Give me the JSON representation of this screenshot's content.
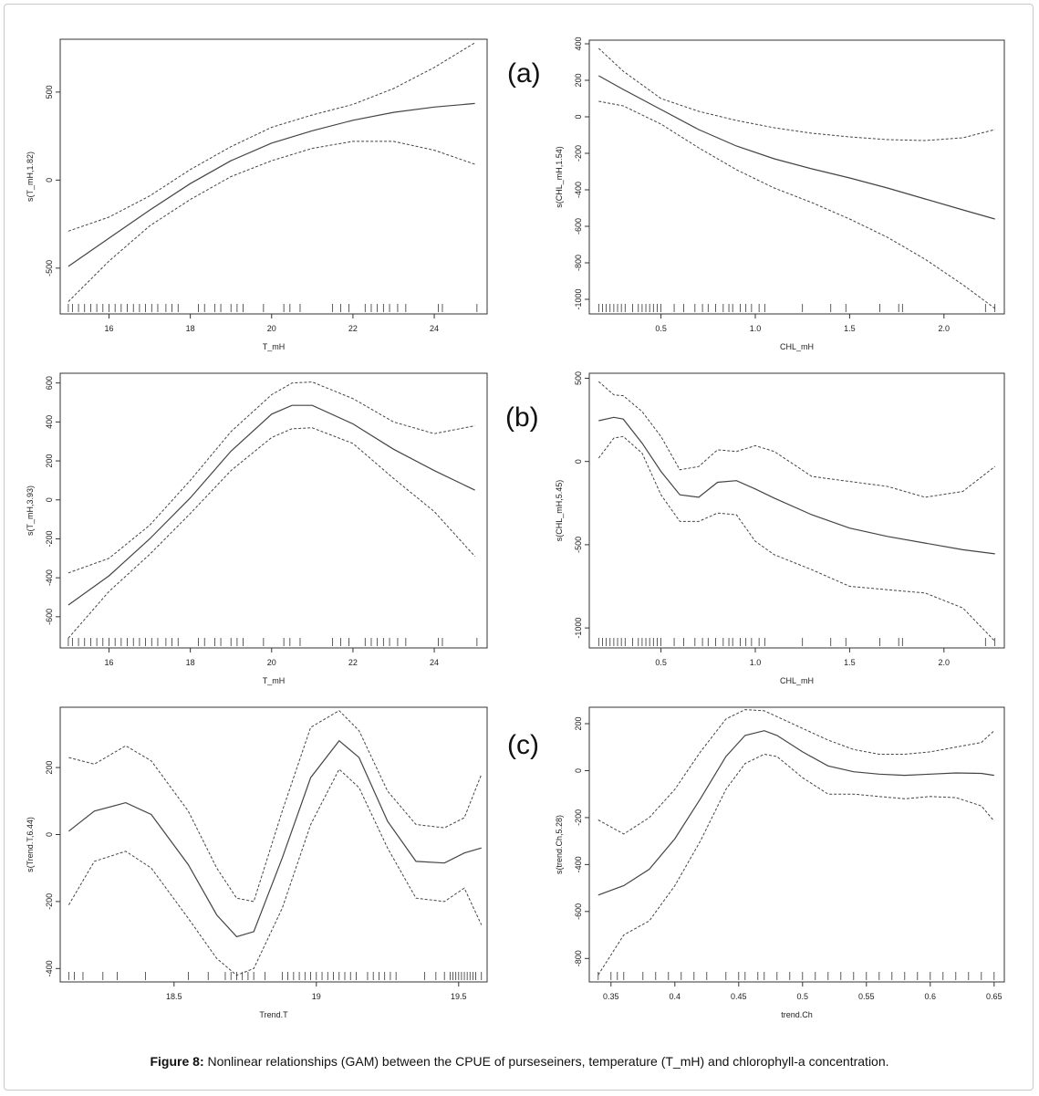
{
  "caption": {
    "label": "Figure 8:",
    "text": " Nonlinear relationships (GAM) between the CPUE of purseseiners, temperature (T_mH) and chlorophyll-a concentration."
  },
  "panel_labels": [
    "(a)",
    "(b)",
    "(c)"
  ],
  "colors": {
    "line": "#444444",
    "axis": "#333333"
  },
  "chart_data": [
    {
      "type": "line",
      "panel": "a-left",
      "xlabel": "T_mH",
      "ylabel": "s(T_mH,1.82)",
      "xlim": [
        14.8,
        25.3
      ],
      "ylim": [
        -760,
        800
      ],
      "xticks": [
        16,
        18,
        20,
        22,
        24
      ],
      "yticks": [
        -500,
        0,
        500
      ],
      "x": [
        15,
        16,
        17,
        18,
        19,
        20,
        21,
        22,
        23,
        24,
        25
      ],
      "fit": [
        -490,
        -330,
        -170,
        -20,
        110,
        210,
        280,
        340,
        385,
        415,
        435
      ],
      "upper": [
        -290,
        -210,
        -90,
        60,
        190,
        300,
        370,
        430,
        520,
        640,
        780
      ],
      "lower": [
        -690,
        -460,
        -260,
        -110,
        20,
        110,
        180,
        220,
        220,
        170,
        90
      ],
      "rug": [
        15.0,
        15.1,
        15.25,
        15.4,
        15.55,
        15.7,
        15.85,
        16.0,
        16.15,
        16.3,
        16.45,
        16.6,
        16.75,
        16.9,
        17.05,
        17.2,
        17.4,
        17.55,
        17.7,
        18.2,
        18.35,
        18.6,
        18.75,
        19.0,
        19.15,
        19.3,
        19.8,
        20.3,
        20.45,
        20.7,
        21.5,
        21.7,
        21.9,
        22.3,
        22.45,
        22.6,
        22.75,
        22.9,
        23.1,
        23.3,
        24.1,
        24.2,
        25.05
      ]
    },
    {
      "type": "line",
      "panel": "a-right",
      "xlabel": "CHL_mH",
      "ylabel": "s(CHL_mH,1.54)",
      "xlim": [
        0.12,
        2.32
      ],
      "ylim": [
        -1080,
        420
      ],
      "xticks": [
        0.5,
        1.0,
        1.5,
        2.0
      ],
      "yticks": [
        -1000,
        -800,
        -600,
        -400,
        -200,
        0,
        200,
        400
      ],
      "x": [
        0.17,
        0.3,
        0.5,
        0.7,
        0.9,
        1.1,
        1.3,
        1.5,
        1.7,
        1.9,
        2.1,
        2.27
      ],
      "fit": [
        225,
        150,
        40,
        -70,
        -160,
        -230,
        -285,
        -335,
        -390,
        -450,
        -510,
        -560
      ],
      "upper": [
        375,
        250,
        100,
        30,
        -20,
        -60,
        -90,
        -110,
        -125,
        -130,
        -115,
        -70
      ],
      "lower": [
        85,
        60,
        -40,
        -170,
        -290,
        -390,
        -470,
        -560,
        -660,
        -780,
        -920,
        -1050
      ],
      "rug": [
        0.17,
        0.19,
        0.21,
        0.23,
        0.25,
        0.27,
        0.29,
        0.31,
        0.35,
        0.38,
        0.4,
        0.42,
        0.44,
        0.46,
        0.48,
        0.5,
        0.57,
        0.62,
        0.68,
        0.72,
        0.75,
        0.79,
        0.83,
        0.86,
        0.88,
        0.92,
        0.95,
        0.98,
        1.02,
        1.05,
        1.25,
        1.4,
        1.48,
        1.66,
        1.76,
        1.78,
        2.22,
        2.27
      ]
    },
    {
      "type": "line",
      "panel": "b-left",
      "xlabel": "T_mH",
      "ylabel": "s(T_mH,3.93)",
      "xlim": [
        14.8,
        25.3
      ],
      "ylim": [
        -760,
        650
      ],
      "xticks": [
        16,
        18,
        20,
        22,
        24
      ],
      "yticks": [
        -600,
        -400,
        -200,
        0,
        200,
        400,
        600
      ],
      "x": [
        15,
        16,
        17,
        18,
        19,
        20,
        20.5,
        21,
        22,
        23,
        24,
        25
      ],
      "fit": [
        -540,
        -390,
        -200,
        10,
        250,
        440,
        485,
        485,
        390,
        260,
        150,
        50
      ],
      "upper": [
        -375,
        -300,
        -130,
        100,
        350,
        540,
        600,
        605,
        520,
        400,
        340,
        380
      ],
      "lower": [
        -710,
        -470,
        -280,
        -70,
        150,
        320,
        365,
        370,
        290,
        110,
        -60,
        -290
      ],
      "rug": [
        15.0,
        15.1,
        15.25,
        15.4,
        15.55,
        15.7,
        15.85,
        16.0,
        16.15,
        16.3,
        16.45,
        16.6,
        16.75,
        16.9,
        17.05,
        17.2,
        17.4,
        17.55,
        17.7,
        18.2,
        18.35,
        18.6,
        18.75,
        19.0,
        19.15,
        19.3,
        19.8,
        20.3,
        20.45,
        20.7,
        21.5,
        21.7,
        21.9,
        22.3,
        22.45,
        22.6,
        22.75,
        22.9,
        23.1,
        23.3,
        24.1,
        24.2,
        25.05
      ]
    },
    {
      "type": "line",
      "panel": "b-right",
      "xlabel": "CHL_mH",
      "ylabel": "s(CHL_mH,5.45)",
      "xlim": [
        0.12,
        2.32
      ],
      "ylim": [
        -1120,
        530
      ],
      "xticks": [
        0.5,
        1.0,
        1.5,
        2.0
      ],
      "yticks": [
        -1000,
        -500,
        0,
        500
      ],
      "x": [
        0.17,
        0.25,
        0.3,
        0.4,
        0.5,
        0.6,
        0.7,
        0.8,
        0.9,
        1.0,
        1.1,
        1.3,
        1.5,
        1.7,
        1.9,
        2.1,
        2.27
      ],
      "fit": [
        245,
        265,
        255,
        110,
        -60,
        -200,
        -215,
        -125,
        -115,
        -165,
        -220,
        -320,
        -400,
        -450,
        -490,
        -530,
        -555
      ],
      "upper": [
        480,
        400,
        395,
        300,
        150,
        -50,
        -30,
        70,
        60,
        95,
        60,
        -90,
        -120,
        -150,
        -215,
        -180,
        -30
      ],
      "lower": [
        20,
        140,
        150,
        50,
        -200,
        -360,
        -360,
        -310,
        -320,
        -480,
        -560,
        -650,
        -750,
        -770,
        -790,
        -880,
        -1080
      ],
      "rug": [
        0.17,
        0.19,
        0.21,
        0.23,
        0.25,
        0.27,
        0.29,
        0.31,
        0.35,
        0.38,
        0.4,
        0.42,
        0.44,
        0.46,
        0.48,
        0.5,
        0.57,
        0.62,
        0.68,
        0.72,
        0.75,
        0.79,
        0.83,
        0.86,
        0.88,
        0.92,
        0.95,
        0.98,
        1.02,
        1.05,
        1.25,
        1.4,
        1.48,
        1.66,
        1.76,
        1.78,
        2.22,
        2.27
      ]
    },
    {
      "type": "line",
      "panel": "c-left",
      "xlabel": "Trend.T",
      "ylabel": "s(Trend.T,6.44)",
      "xlim": [
        18.1,
        19.6
      ],
      "ylim": [
        -440,
        380
      ],
      "xticks": [
        18.5,
        19.0,
        19.5
      ],
      "yticks": [
        -400,
        -200,
        0,
        200
      ],
      "x": [
        18.13,
        18.22,
        18.33,
        18.42,
        18.55,
        18.65,
        18.72,
        18.78,
        18.88,
        18.98,
        19.08,
        19.15,
        19.25,
        19.35,
        19.45,
        19.52,
        19.58
      ],
      "fit": [
        10,
        70,
        95,
        60,
        -90,
        -240,
        -305,
        -290,
        -70,
        170,
        280,
        230,
        40,
        -80,
        -85,
        -55,
        -40
      ],
      "upper": [
        230,
        210,
        265,
        220,
        70,
        -100,
        -190,
        -200,
        70,
        320,
        370,
        310,
        130,
        30,
        20,
        50,
        180
      ],
      "lower": [
        -210,
        -80,
        -50,
        -100,
        -250,
        -370,
        -420,
        -400,
        -220,
        30,
        195,
        140,
        -40,
        -190,
        -200,
        -160,
        -270
      ],
      "rug": [
        18.13,
        18.15,
        18.18,
        18.25,
        18.3,
        18.4,
        18.55,
        18.62,
        18.68,
        18.7,
        18.72,
        18.74,
        18.76,
        18.78,
        18.82,
        18.88,
        18.9,
        18.92,
        18.94,
        18.96,
        18.98,
        19.0,
        19.02,
        19.04,
        19.06,
        19.08,
        19.1,
        19.12,
        19.14,
        19.18,
        19.2,
        19.22,
        19.24,
        19.26,
        19.28,
        19.38,
        19.42,
        19.45,
        19.47,
        19.48,
        19.49,
        19.5,
        19.51,
        19.52,
        19.53,
        19.54,
        19.55,
        19.56,
        19.58
      ]
    },
    {
      "type": "line",
      "panel": "c-right",
      "xlabel": "trend.Ch",
      "ylabel": "s(trend.Ch,5.28)",
      "xlim": [
        0.333,
        0.658
      ],
      "ylim": [
        -900,
        270
      ],
      "xticks": [
        0.35,
        0.4,
        0.45,
        0.5,
        0.55,
        0.6,
        0.65
      ],
      "yticks": [
        -800,
        -600,
        -400,
        -200,
        0,
        200
      ],
      "x": [
        0.34,
        0.36,
        0.38,
        0.4,
        0.42,
        0.44,
        0.455,
        0.47,
        0.48,
        0.5,
        0.52,
        0.54,
        0.56,
        0.58,
        0.6,
        0.62,
        0.64,
        0.65
      ],
      "fit": [
        -530,
        -490,
        -420,
        -290,
        -120,
        60,
        150,
        170,
        150,
        80,
        20,
        -5,
        -15,
        -20,
        -15,
        -10,
        -12,
        -20
      ],
      "upper": [
        -210,
        -270,
        -200,
        -80,
        80,
        220,
        260,
        255,
        230,
        180,
        130,
        90,
        70,
        70,
        80,
        100,
        120,
        170
      ],
      "lower": [
        -870,
        -700,
        -640,
        -490,
        -300,
        -80,
        30,
        70,
        60,
        -30,
        -100,
        -100,
        -110,
        -120,
        -110,
        -115,
        -150,
        -215
      ],
      "rug": [
        0.34,
        0.35,
        0.355,
        0.36,
        0.375,
        0.385,
        0.395,
        0.405,
        0.415,
        0.425,
        0.44,
        0.45,
        0.455,
        0.465,
        0.47,
        0.48,
        0.49,
        0.5,
        0.51,
        0.52,
        0.53,
        0.54,
        0.55,
        0.56,
        0.57,
        0.58,
        0.59,
        0.6,
        0.61,
        0.62,
        0.63,
        0.64,
        0.65
      ]
    }
  ]
}
